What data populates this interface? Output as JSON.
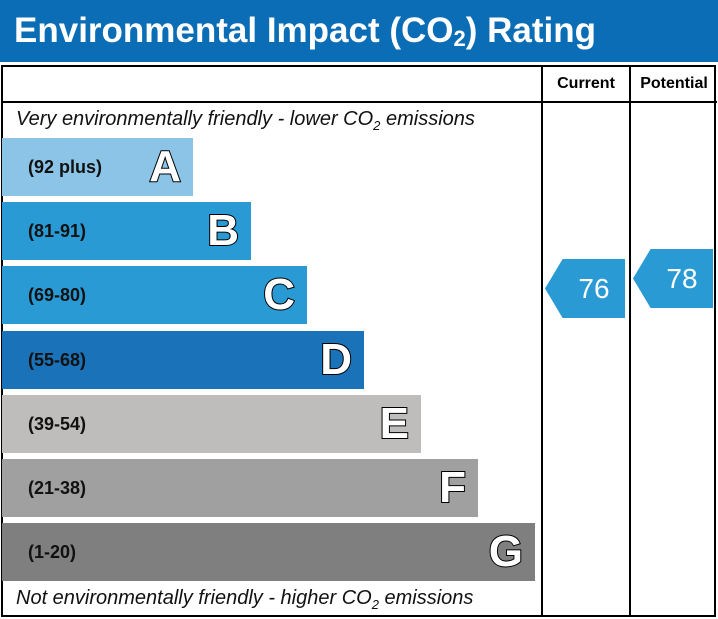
{
  "title": {
    "prefix": "Environmental Impact (CO",
    "sub": "2",
    "suffix": ") Rating"
  },
  "chart_data": {
    "type": "bar",
    "columns": [
      "Current",
      "Potential"
    ],
    "top_caption": {
      "prefix": "Very environmentally friendly - lower CO",
      "sub": "2",
      "suffix": " emissions"
    },
    "bottom_caption": {
      "prefix": "Not environmentally friendly - higher CO",
      "sub": "2",
      "suffix": " emissions"
    },
    "bands": [
      {
        "letter": "A",
        "range": "(92 plus)",
        "color": "#8cc4e8"
      },
      {
        "letter": "B",
        "range": "(81-91)",
        "color": "#2a9ad4"
      },
      {
        "letter": "C",
        "range": "(69-80)",
        "color": "#2a9ad4"
      },
      {
        "letter": "D",
        "range": "(55-68)",
        "color": "#1a72b8"
      },
      {
        "letter": "E",
        "range": "(39-54)",
        "color": "#bebdbb"
      },
      {
        "letter": "F",
        "range": "(21-38)",
        "color": "#a0a0a0"
      },
      {
        "letter": "G",
        "range": "(1-20)",
        "color": "#7f7f7f"
      }
    ],
    "current": {
      "value": "76",
      "color": "#2a9ad4"
    },
    "potential": {
      "value": "78",
      "color": "#2a9ad4"
    }
  }
}
